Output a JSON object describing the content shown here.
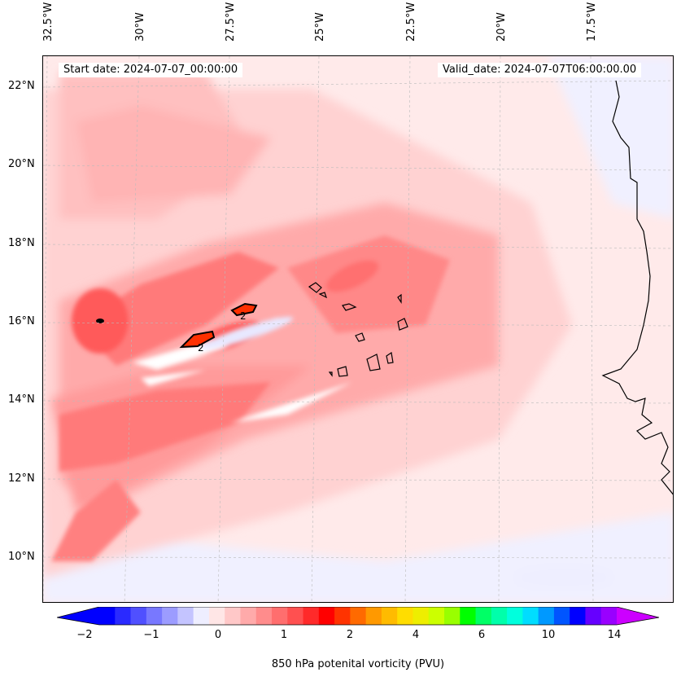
{
  "map": {
    "title_left": "Start date: 2024-07-07_00:00:00",
    "title_right": "Valid_date: 2024-07-07T06:00:00.00",
    "lon_labels": [
      "32.5°W",
      "30°W",
      "27.5°W",
      "25°W",
      "22.5°W",
      "20°W",
      "17.5°W"
    ],
    "lat_labels": [
      "22°N",
      "20°N",
      "18°N",
      "16°N",
      "14°N",
      "12°N",
      "10°N"
    ],
    "extent": {
      "lon_min": -32.5,
      "lon_max": -15.0,
      "lat_min": 9.0,
      "lat_max": 22.8
    },
    "contour_label": "2",
    "variable": "850 hPa potential vorticity",
    "features": [
      "Cape Verde islands",
      "West African coastline"
    ]
  },
  "colorbar": {
    "label": "850 hPa potenital vorticity (PVU)",
    "ticks": [
      "−2",
      "−1",
      "0",
      "1",
      "2",
      "4",
      "6",
      "10",
      "14"
    ],
    "colors": [
      "#0000ff",
      "#2a2aff",
      "#5050ff",
      "#7878ff",
      "#9c9cff",
      "#c4c4ff",
      "#eeeeff",
      "#ffe6e6",
      "#ffc8c8",
      "#ffaaaa",
      "#ff8c8c",
      "#ff6e6e",
      "#ff5050",
      "#ff2a2a",
      "#ff0000",
      "#ff3300",
      "#ff6a00",
      "#ff9900",
      "#ffbb00",
      "#ffdd00",
      "#eeee00",
      "#ccff00",
      "#99ff00",
      "#00ff00",
      "#00ff66",
      "#00ffaa",
      "#00ffdd",
      "#00ddff",
      "#0099ff",
      "#0055ff",
      "#0000ff",
      "#6600ff",
      "#9900ff"
    ],
    "extend_low": "#0000ff",
    "extend_high": "#cc00ff"
  }
}
